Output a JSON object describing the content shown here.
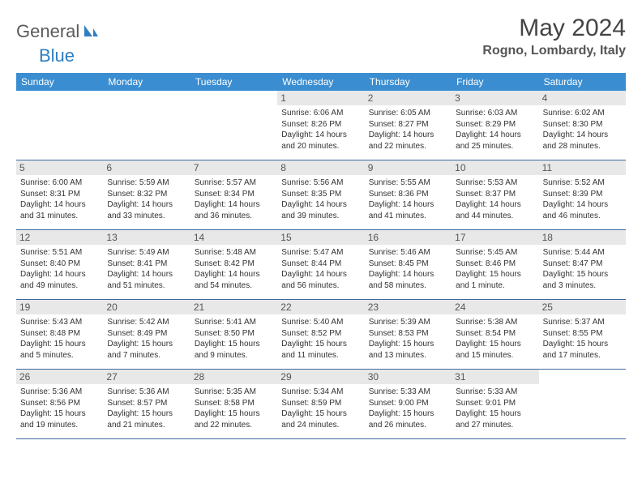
{
  "logo": {
    "text1": "General",
    "text2": "Blue"
  },
  "title": "May 2024",
  "location": "Rogno, Lombardy, Italy",
  "colors": {
    "header_bg": "#3a8dd0",
    "border": "#3a6b9c",
    "daynum_bg": "#e8e8e8",
    "logo_gray": "#5a5a5a",
    "logo_blue": "#2f7fc2"
  },
  "weekdays": [
    "Sunday",
    "Monday",
    "Tuesday",
    "Wednesday",
    "Thursday",
    "Friday",
    "Saturday"
  ],
  "weeks": [
    [
      {
        "num": "",
        "sunrise": "",
        "sunset": "",
        "daylight": "",
        "empty": true
      },
      {
        "num": "",
        "sunrise": "",
        "sunset": "",
        "daylight": "",
        "empty": true
      },
      {
        "num": "",
        "sunrise": "",
        "sunset": "",
        "daylight": "",
        "empty": true
      },
      {
        "num": "1",
        "sunrise": "6:06 AM",
        "sunset": "8:26 PM",
        "daylight": "14 hours and 20 minutes."
      },
      {
        "num": "2",
        "sunrise": "6:05 AM",
        "sunset": "8:27 PM",
        "daylight": "14 hours and 22 minutes."
      },
      {
        "num": "3",
        "sunrise": "6:03 AM",
        "sunset": "8:29 PM",
        "daylight": "14 hours and 25 minutes."
      },
      {
        "num": "4",
        "sunrise": "6:02 AM",
        "sunset": "8:30 PM",
        "daylight": "14 hours and 28 minutes."
      }
    ],
    [
      {
        "num": "5",
        "sunrise": "6:00 AM",
        "sunset": "8:31 PM",
        "daylight": "14 hours and 31 minutes."
      },
      {
        "num": "6",
        "sunrise": "5:59 AM",
        "sunset": "8:32 PM",
        "daylight": "14 hours and 33 minutes."
      },
      {
        "num": "7",
        "sunrise": "5:57 AM",
        "sunset": "8:34 PM",
        "daylight": "14 hours and 36 minutes."
      },
      {
        "num": "8",
        "sunrise": "5:56 AM",
        "sunset": "8:35 PM",
        "daylight": "14 hours and 39 minutes."
      },
      {
        "num": "9",
        "sunrise": "5:55 AM",
        "sunset": "8:36 PM",
        "daylight": "14 hours and 41 minutes."
      },
      {
        "num": "10",
        "sunrise": "5:53 AM",
        "sunset": "8:37 PM",
        "daylight": "14 hours and 44 minutes."
      },
      {
        "num": "11",
        "sunrise": "5:52 AM",
        "sunset": "8:39 PM",
        "daylight": "14 hours and 46 minutes."
      }
    ],
    [
      {
        "num": "12",
        "sunrise": "5:51 AM",
        "sunset": "8:40 PM",
        "daylight": "14 hours and 49 minutes."
      },
      {
        "num": "13",
        "sunrise": "5:49 AM",
        "sunset": "8:41 PM",
        "daylight": "14 hours and 51 minutes."
      },
      {
        "num": "14",
        "sunrise": "5:48 AM",
        "sunset": "8:42 PM",
        "daylight": "14 hours and 54 minutes."
      },
      {
        "num": "15",
        "sunrise": "5:47 AM",
        "sunset": "8:44 PM",
        "daylight": "14 hours and 56 minutes."
      },
      {
        "num": "16",
        "sunrise": "5:46 AM",
        "sunset": "8:45 PM",
        "daylight": "14 hours and 58 minutes."
      },
      {
        "num": "17",
        "sunrise": "5:45 AM",
        "sunset": "8:46 PM",
        "daylight": "15 hours and 1 minute."
      },
      {
        "num": "18",
        "sunrise": "5:44 AM",
        "sunset": "8:47 PM",
        "daylight": "15 hours and 3 minutes."
      }
    ],
    [
      {
        "num": "19",
        "sunrise": "5:43 AM",
        "sunset": "8:48 PM",
        "daylight": "15 hours and 5 minutes."
      },
      {
        "num": "20",
        "sunrise": "5:42 AM",
        "sunset": "8:49 PM",
        "daylight": "15 hours and 7 minutes."
      },
      {
        "num": "21",
        "sunrise": "5:41 AM",
        "sunset": "8:50 PM",
        "daylight": "15 hours and 9 minutes."
      },
      {
        "num": "22",
        "sunrise": "5:40 AM",
        "sunset": "8:52 PM",
        "daylight": "15 hours and 11 minutes."
      },
      {
        "num": "23",
        "sunrise": "5:39 AM",
        "sunset": "8:53 PM",
        "daylight": "15 hours and 13 minutes."
      },
      {
        "num": "24",
        "sunrise": "5:38 AM",
        "sunset": "8:54 PM",
        "daylight": "15 hours and 15 minutes."
      },
      {
        "num": "25",
        "sunrise": "5:37 AM",
        "sunset": "8:55 PM",
        "daylight": "15 hours and 17 minutes."
      }
    ],
    [
      {
        "num": "26",
        "sunrise": "5:36 AM",
        "sunset": "8:56 PM",
        "daylight": "15 hours and 19 minutes."
      },
      {
        "num": "27",
        "sunrise": "5:36 AM",
        "sunset": "8:57 PM",
        "daylight": "15 hours and 21 minutes."
      },
      {
        "num": "28",
        "sunrise": "5:35 AM",
        "sunset": "8:58 PM",
        "daylight": "15 hours and 22 minutes."
      },
      {
        "num": "29",
        "sunrise": "5:34 AM",
        "sunset": "8:59 PM",
        "daylight": "15 hours and 24 minutes."
      },
      {
        "num": "30",
        "sunrise": "5:33 AM",
        "sunset": "9:00 PM",
        "daylight": "15 hours and 26 minutes."
      },
      {
        "num": "31",
        "sunrise": "5:33 AM",
        "sunset": "9:01 PM",
        "daylight": "15 hours and 27 minutes."
      },
      {
        "num": "",
        "sunrise": "",
        "sunset": "",
        "daylight": "",
        "empty": true
      }
    ]
  ],
  "labels": {
    "sunrise": "Sunrise:",
    "sunset": "Sunset:",
    "daylight": "Daylight:"
  }
}
